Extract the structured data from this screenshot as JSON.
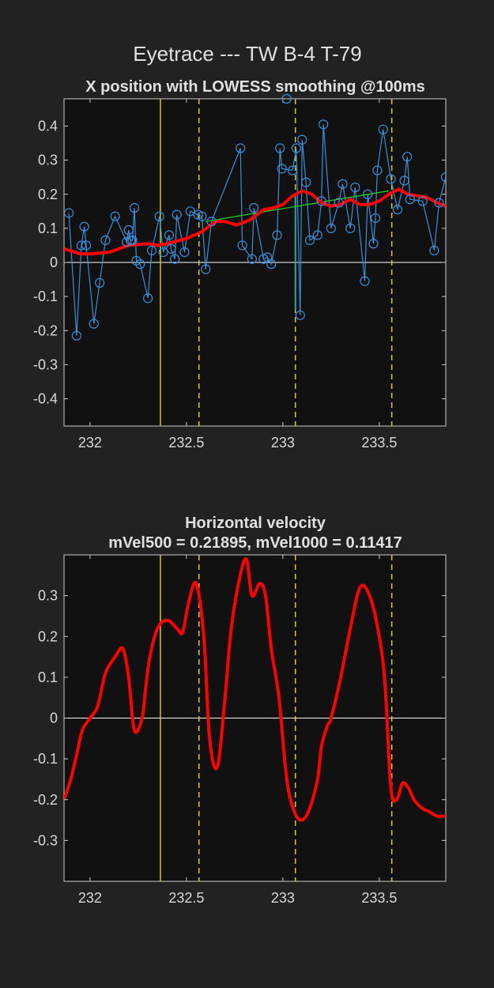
{
  "figure_title": "Eyetrace --- TW B-4 T-79",
  "colors": {
    "figure_bg": "#222222",
    "axes_bg": "#111111",
    "axes_border": "#cccccc",
    "raw_points": "#3a8fd9",
    "smoothed": "#ff0000",
    "saccade_segment": "#22cc22",
    "saccade_segment_dark": "#22aaaa",
    "event_line": "#d4c92a",
    "zero_line": "#ffffff"
  },
  "chart_data": [
    {
      "type": "scatter",
      "title": "X position with LOWESS smoothing @100ms",
      "xlabel": "",
      "ylabel": "",
      "xlim": [
        231.865,
        233.845
      ],
      "ylim": [
        -0.48,
        0.48
      ],
      "xticks": [
        232,
        232.5,
        233,
        233.5
      ],
      "xtick_labels": [
        "232",
        "232.5",
        "233",
        "233.5"
      ],
      "yticks": [
        -0.4,
        -0.3,
        -0.2,
        -0.1,
        0,
        0.1,
        0.2,
        0.3,
        0.4
      ],
      "ytick_labels": [
        "-0.4",
        "-0.3",
        "-0.2",
        "-0.1",
        "0",
        "0.1",
        "0.2",
        "0.3",
        "0.4"
      ],
      "grid": false,
      "event_lines": [
        {
          "x": 232.365,
          "style": "solid"
        },
        {
          "x": 232.565,
          "style": "dashed"
        },
        {
          "x": 233.065,
          "style": "dashed"
        },
        {
          "x": 233.565,
          "style": "dashed"
        }
      ],
      "raw_points": {
        "x": [
          231.89,
          231.93,
          231.955,
          231.97,
          231.98,
          232.02,
          232.05,
          232.08,
          232.13,
          232.19,
          232.2,
          232.21,
          232.22,
          232.23,
          232.24,
          232.26,
          232.3,
          232.32,
          232.36,
          232.38,
          232.41,
          232.42,
          232.44,
          232.45,
          232.49,
          232.52,
          232.56,
          232.58,
          232.6,
          232.63,
          232.78,
          232.79,
          232.84,
          232.85,
          232.9,
          232.92,
          232.94,
          232.97,
          232.985,
          232.995,
          233.05,
          233.07,
          233.09,
          233.1,
          233.12,
          233.14,
          233.18,
          233.2,
          233.21,
          233.25,
          233.29,
          233.31,
          233.35,
          233.375,
          233.425,
          233.44,
          233.47,
          233.48,
          233.49,
          233.52,
          233.56,
          233.595,
          233.63,
          233.645,
          233.66,
          233.725,
          233.785,
          233.81,
          233.845
        ],
        "y": [
          0.145,
          -0.215,
          0.05,
          0.105,
          0.05,
          -0.18,
          -0.06,
          0.065,
          0.135,
          0.06,
          0.095,
          0.065,
          0.065,
          0.16,
          0.005,
          -0.005,
          -0.105,
          0.035,
          0.135,
          0.03,
          0.08,
          0.04,
          0.01,
          0.14,
          0.03,
          0.15,
          0.14,
          0.135,
          -0.02,
          0.12,
          0.335,
          0.05,
          0.01,
          0.16,
          0.01,
          0.015,
          -0.005,
          0.08,
          0.335,
          0.275,
          0.27,
          0.335,
          -0.155,
          0.36,
          0.235,
          0.065,
          0.08,
          0.18,
          0.405,
          0.1,
          0.175,
          0.23,
          0.1,
          0.22,
          -0.055,
          0.2,
          0.055,
          0.13,
          0.27,
          0.39,
          0.245,
          0.155,
          0.24,
          0.31,
          0.185,
          0.18,
          0.035,
          0.175,
          0.25
        ]
      },
      "outlier_point": {
        "x": 233.02,
        "y": 0.48
      },
      "saccade_segment": {
        "x": [
          232.6,
          233.55
        ],
        "y": [
          0.12,
          0.21
        ]
      },
      "smoothed": {
        "x": [
          231.865,
          231.95,
          232.0,
          232.1,
          232.2,
          232.3,
          232.35,
          232.4,
          232.5,
          232.58,
          232.65,
          232.7,
          232.76,
          232.83,
          232.9,
          232.95,
          233.0,
          233.05,
          233.1,
          233.15,
          233.2,
          233.25,
          233.3,
          233.35,
          233.4,
          233.45,
          233.5,
          233.55,
          233.6,
          233.65,
          233.7,
          233.75,
          233.8,
          233.845
        ],
        "y": [
          0.04,
          0.025,
          0.025,
          0.03,
          0.05,
          0.055,
          0.05,
          0.055,
          0.07,
          0.09,
          0.12,
          0.12,
          0.11,
          0.125,
          0.155,
          0.16,
          0.17,
          0.195,
          0.21,
          0.2,
          0.175,
          0.165,
          0.17,
          0.185,
          0.17,
          0.17,
          0.18,
          0.2,
          0.215,
          0.2,
          0.195,
          0.19,
          0.175,
          0.165
        ]
      }
    },
    {
      "type": "line",
      "title": "Horizontal velocity",
      "subtitle": "mVel500 = 0.21895, mVel1000 = 0.11417",
      "xlabel": "",
      "ylabel": "",
      "xlim": [
        231.865,
        233.845
      ],
      "ylim": [
        -0.4,
        0.4
      ],
      "xticks": [
        232,
        232.5,
        233,
        233.5
      ],
      "xtick_labels": [
        "232",
        "232.5",
        "233",
        "233.5"
      ],
      "yticks": [
        -0.3,
        -0.2,
        -0.1,
        0,
        0.1,
        0.2,
        0.3
      ],
      "ytick_labels": [
        "-0.3",
        "-0.2",
        "-0.1",
        "0",
        "0.1",
        "0.2",
        "0.3"
      ],
      "grid": false,
      "event_lines": [
        {
          "x": 232.365,
          "style": "solid"
        },
        {
          "x": 232.565,
          "style": "dashed"
        },
        {
          "x": 233.065,
          "style": "dashed"
        },
        {
          "x": 233.565,
          "style": "dashed"
        }
      ],
      "series": [
        {
          "x": [
            231.865,
            231.9,
            231.93,
            231.96,
            232.0,
            232.04,
            232.08,
            232.13,
            232.17,
            232.2,
            232.23,
            232.27,
            232.29,
            232.31,
            232.35,
            232.4,
            232.45,
            232.48,
            232.51,
            232.55,
            232.59,
            232.62,
            232.66,
            232.7,
            232.73,
            232.77,
            232.81,
            232.84,
            232.88,
            232.91,
            232.94,
            232.98,
            233.02,
            233.06,
            233.1,
            233.14,
            233.18,
            233.2,
            233.23,
            233.25,
            233.3,
            233.35,
            233.4,
            233.45,
            233.5,
            233.53,
            233.56,
            233.59,
            233.62,
            233.65,
            233.68,
            233.72,
            233.76,
            233.8,
            233.845
          ],
          "y": [
            -0.2,
            -0.15,
            -0.09,
            -0.03,
            0.0,
            0.03,
            0.11,
            0.15,
            0.17,
            0.1,
            -0.03,
            0.0,
            0.08,
            0.15,
            0.22,
            0.24,
            0.22,
            0.21,
            0.28,
            0.33,
            0.2,
            -0.05,
            -0.12,
            0.05,
            0.21,
            0.33,
            0.39,
            0.3,
            0.33,
            0.3,
            0.17,
            0.05,
            -0.15,
            -0.23,
            -0.25,
            -0.22,
            -0.15,
            -0.07,
            -0.02,
            0.0,
            0.1,
            0.22,
            0.32,
            0.3,
            0.2,
            0.08,
            -0.17,
            -0.2,
            -0.16,
            -0.17,
            -0.2,
            -0.22,
            -0.23,
            -0.24,
            -0.24
          ]
        }
      ]
    }
  ]
}
